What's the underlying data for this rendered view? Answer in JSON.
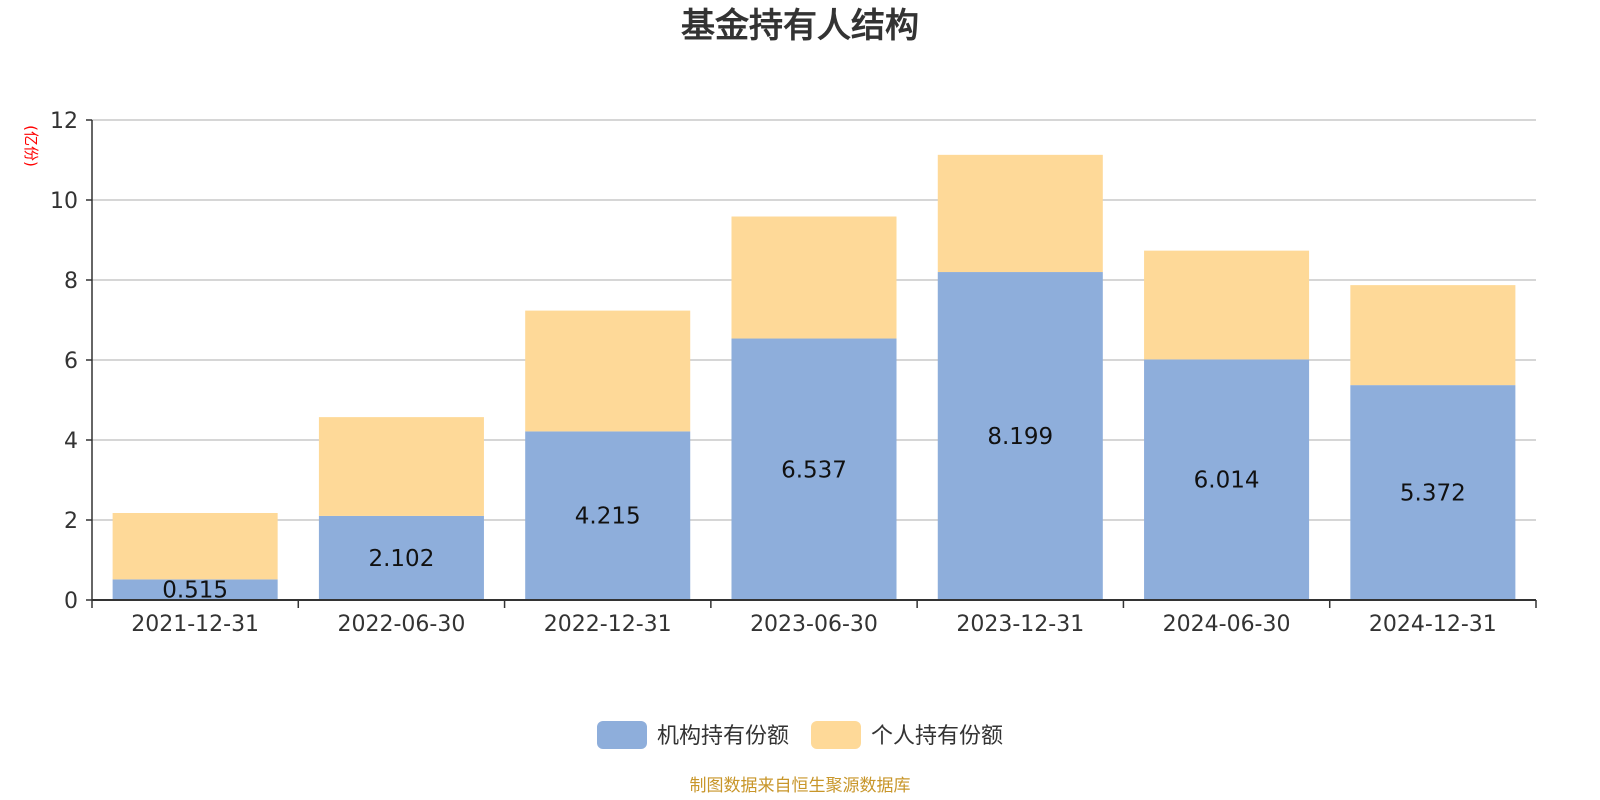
{
  "chart_data": {
    "type": "bar",
    "stacked": true,
    "title": "基金持有人结构",
    "unit_label": "(亿份)",
    "categories": [
      "2021-12-31",
      "2022-06-30",
      "2022-12-31",
      "2023-06-30",
      "2023-12-31",
      "2024-06-30",
      "2024-12-31"
    ],
    "series": [
      {
        "name": "机构持有份额",
        "color": "#8eaedb",
        "values": [
          0.515,
          2.102,
          4.215,
          6.537,
          8.199,
          6.014,
          5.372
        ],
        "show_labels": true
      },
      {
        "name": "个人持有份额",
        "color": "#fed998",
        "values": [
          1.66,
          2.47,
          3.02,
          3.05,
          2.93,
          2.72,
          2.5
        ],
        "show_labels": false
      }
    ],
    "y_ticks": [
      0,
      2,
      4,
      6,
      8,
      10,
      12
    ],
    "ylim": [
      0,
      12
    ],
    "grid": true,
    "legend_position": "bottom-center",
    "source": "制图数据来自恒生聚源数据库"
  }
}
